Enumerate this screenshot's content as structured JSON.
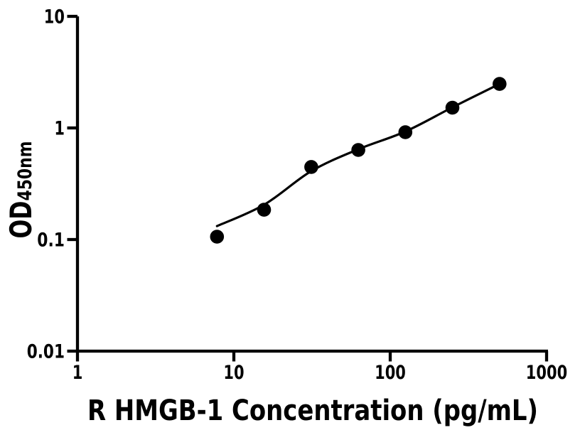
{
  "figure": {
    "background_color": "#ffffff",
    "foreground_color": "#000000"
  },
  "chart_data": {
    "type": "scatter",
    "title": "",
    "xlabel": "R HMGB-1 Concentration (pg/mL)",
    "ylabel": "OD450nm",
    "ylabel_main": "OD",
    "ylabel_sub": "450nm",
    "x_scale": "log10",
    "y_scale": "log10",
    "xlim": [
      1,
      1000
    ],
    "ylim": [
      0.01,
      10
    ],
    "x_ticks": [
      {
        "value": 1,
        "label": "1"
      },
      {
        "value": 10,
        "label": "10"
      },
      {
        "value": 100,
        "label": "100"
      },
      {
        "value": 1000,
        "label": "1000"
      }
    ],
    "y_ticks": [
      {
        "value": 0.01,
        "label": "0.01"
      },
      {
        "value": 0.1,
        "label": "0.1"
      },
      {
        "value": 1,
        "label": "1"
      },
      {
        "value": 10,
        "label": "10"
      }
    ],
    "grid": false,
    "legend": false,
    "marker": {
      "shape": "circle",
      "color": "#000000"
    },
    "line": {
      "color": "#000000",
      "style": "solid"
    },
    "series": [
      {
        "name": "standard-curve-points",
        "points": [
          {
            "concentration_pg_ml": 7.8,
            "od450": 0.106
          },
          {
            "concentration_pg_ml": 15.6,
            "od450": 0.185
          },
          {
            "concentration_pg_ml": 31.25,
            "od450": 0.447
          },
          {
            "concentration_pg_ml": 62.5,
            "od450": 0.635
          },
          {
            "concentration_pg_ml": 125,
            "od450": 0.916
          },
          {
            "concentration_pg_ml": 250,
            "od450": 1.52
          },
          {
            "concentration_pg_ml": 500,
            "od450": 2.48
          }
        ]
      }
    ],
    "fit_curve": [
      {
        "concentration_pg_ml": 7.8,
        "od450": 0.132
      },
      {
        "concentration_pg_ml": 15.6,
        "od450": 0.205
      },
      {
        "concentration_pg_ml": 31.25,
        "od450": 0.41
      },
      {
        "concentration_pg_ml": 62.5,
        "od450": 0.644
      },
      {
        "concentration_pg_ml": 125,
        "od450": 0.929
      },
      {
        "concentration_pg_ml": 250,
        "od450": 1.53
      },
      {
        "concentration_pg_ml": 500,
        "od450": 2.48
      }
    ]
  }
}
